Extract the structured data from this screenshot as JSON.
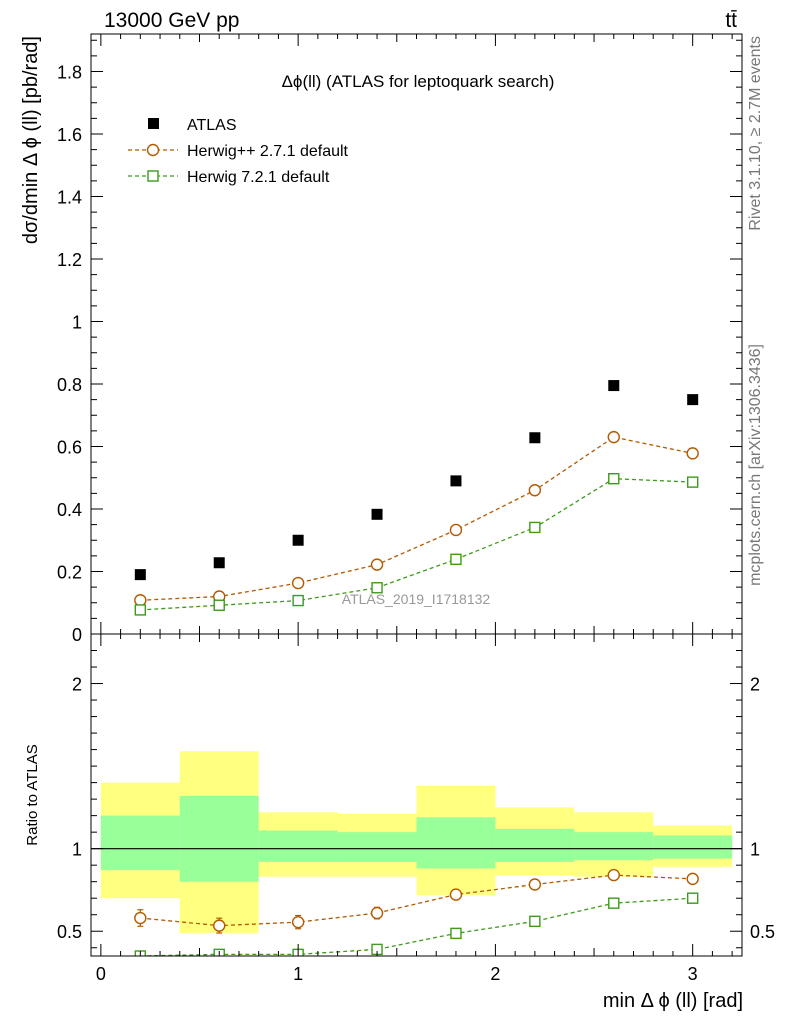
{
  "header": {
    "energy_label": "13000 GeV pp",
    "process_label": "tt̄"
  },
  "side_text": {
    "rivet": "Rivet 3.1.10, ≥ 2.7M events",
    "mcplots": "mcplots.cern.ch [arXiv:1306.3436]"
  },
  "watermark": "ATLAS_2019_I1718132",
  "colors": {
    "data": "#000000",
    "herwigpp": "#b35a00",
    "herwig7": "#3c9b19",
    "band_inner": "#99ff99",
    "band_outer": "#ffff80"
  },
  "chart_data": [
    {
      "type": "scatter",
      "panel": "main",
      "title": "Δϕ(ll) (ATLAS for leptoquark search)",
      "xlabel": "min Δ ϕ (ll) [rad]",
      "ylabel": "dσ/dmin Δ ϕ (ll) [pb/rad]",
      "xlim": [
        -0.05,
        3.25
      ],
      "ylim": [
        0,
        1.92
      ],
      "yticks": [
        "0",
        "0.2",
        "0.4",
        "0.6",
        "0.8",
        "1",
        "1.2",
        "1.4",
        "1.6",
        "1.8"
      ],
      "legend": [
        "ATLAS",
        "Herwig++ 2.7.1 default",
        "Herwig 7.2.1 default"
      ],
      "legend_position": "top-left",
      "x": [
        0.2,
        0.6,
        1.0,
        1.4,
        1.8,
        2.2,
        2.6,
        3.0
      ],
      "series": [
        {
          "name": "ATLAS",
          "marker": "filled-square",
          "values": [
            0.19,
            0.228,
            0.3,
            0.383,
            0.49,
            0.628,
            0.795,
            0.75
          ]
        },
        {
          "name": "Herwig++ 2.7.1 default",
          "marker": "open-circle",
          "line": "dashed",
          "values": [
            0.108,
            0.12,
            0.163,
            0.222,
            0.333,
            0.46,
            0.63,
            0.578
          ]
        },
        {
          "name": "Herwig 7.2.1 default",
          "marker": "open-square",
          "line": "dashed",
          "values": [
            0.077,
            0.092,
            0.107,
            0.148,
            0.239,
            0.341,
            0.497,
            0.486
          ]
        }
      ]
    },
    {
      "type": "line",
      "panel": "ratio",
      "xlabel": "min Δ ϕ (ll) [rad]",
      "ylabel": "Ratio to ATLAS",
      "xlim": [
        -0.05,
        3.25
      ],
      "ylim": [
        0.35,
        2.3
      ],
      "yticks": [
        "0.5",
        "1",
        "2"
      ],
      "xticks": [
        "0",
        "1",
        "2",
        "3"
      ],
      "bins": [
        [
          0,
          0.4
        ],
        [
          0.4,
          0.8
        ],
        [
          0.8,
          1.2
        ],
        [
          1.2,
          1.6
        ],
        [
          1.6,
          2.0
        ],
        [
          2.0,
          2.4
        ],
        [
          2.4,
          2.8
        ],
        [
          2.8,
          3.2
        ]
      ],
      "band_inner": [
        [
          0.87,
          1.2
        ],
        [
          0.8,
          1.32
        ],
        [
          0.92,
          1.11
        ],
        [
          0.92,
          1.1
        ],
        [
          0.88,
          1.19
        ],
        [
          0.92,
          1.12
        ],
        [
          0.93,
          1.1
        ],
        [
          0.94,
          1.08
        ]
      ],
      "band_outer": [
        [
          0.7,
          1.4
        ],
        [
          0.49,
          1.59
        ],
        [
          0.83,
          1.22
        ],
        [
          0.83,
          1.21
        ],
        [
          0.72,
          1.38
        ],
        [
          0.84,
          1.25
        ],
        [
          0.83,
          1.22
        ],
        [
          0.89,
          1.14
        ]
      ],
      "reference": 1,
      "x": [
        0.2,
        0.6,
        1.0,
        1.4,
        1.8,
        2.2,
        2.6,
        3.0
      ],
      "series": [
        {
          "name": "Herwig++ 2.7.1 default",
          "marker": "open-circle",
          "values": [
            0.58,
            0.534,
            0.555,
            0.61,
            0.722,
            0.783,
            0.84,
            0.817
          ],
          "errors": [
            0.05,
            0.045,
            0.04,
            0.035,
            0.025,
            0.02,
            0.015,
            0.012
          ]
        },
        {
          "name": "Herwig 7.2.1 default",
          "marker": "open-square",
          "values": [
            0.35,
            0.36,
            0.36,
            0.39,
            0.487,
            0.56,
            0.67,
            0.7
          ],
          "errors": [
            0.02,
            0.02,
            0.02,
            0.02,
            0.02,
            0.015,
            0.012,
            0.01
          ]
        }
      ]
    }
  ]
}
